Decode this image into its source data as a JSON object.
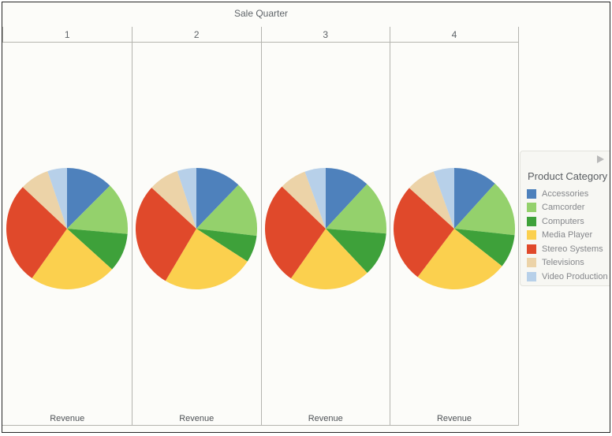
{
  "window": {
    "background": "#fcfcf9",
    "border_color": "#262626",
    "gridline_color": "#b4b4af"
  },
  "legend": {
    "title": "Product Category",
    "expander_icon": "right-triangle",
    "background": "#f7f7f3"
  },
  "chart_data": {
    "type": "pie",
    "title": "Sale Quarter",
    "facet_field": "Sale Quarter",
    "facets": [
      "1",
      "2",
      "3",
      "4"
    ],
    "measure_label": "Revenue",
    "categories": [
      "Accessories",
      "Camcorder",
      "Computers",
      "Media Player",
      "Stereo Systems",
      "Televisions",
      "Video Production"
    ],
    "colors": [
      "#4E81BC",
      "#94D16C",
      "#3EA13A",
      "#FBD04E",
      "#E0492B",
      "#ECD3A8",
      "#B7D0E9"
    ],
    "series": [
      {
        "facet": "1",
        "share_pct": [
          12.5,
          13.9,
          10.3,
          23.1,
          27.2,
          7.8,
          5.2
        ]
      },
      {
        "facet": "2",
        "share_pct": [
          12.2,
          14.7,
          7.2,
          24.4,
          28.3,
          8.1,
          5.1
        ]
      },
      {
        "facet": "3",
        "share_pct": [
          11.9,
          14.4,
          11.7,
          21.7,
          27.5,
          7.2,
          5.6
        ]
      },
      {
        "facet": "4",
        "share_pct": [
          11.7,
          15.0,
          8.9,
          24.7,
          26.4,
          7.8,
          5.5
        ]
      }
    ],
    "layout": {
      "legend_position": "right",
      "start_angle_deg": 0,
      "direction": "clockwise",
      "facet_header_position": "top",
      "measure_label_position": "bottom"
    }
  }
}
